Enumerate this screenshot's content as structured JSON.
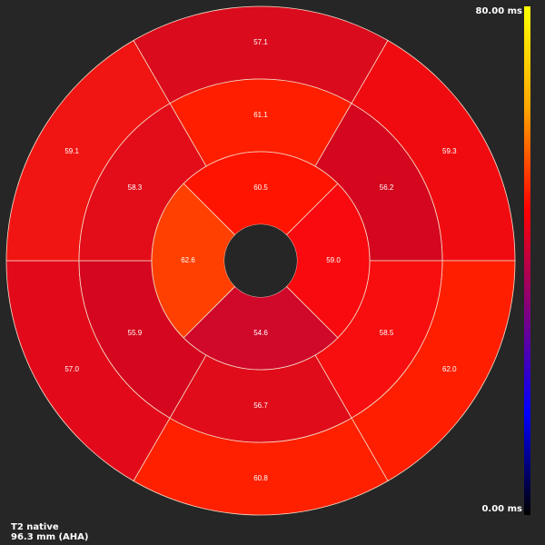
{
  "colorbar": {
    "max_label": "80.00 ms",
    "min_label": "0.00 ms",
    "min_value": 0,
    "max_value": 80,
    "gradient_colors": [
      "#000000",
      "#0000ff",
      "#800080",
      "#ff0000",
      "#ffa500",
      "#ffff00"
    ]
  },
  "footer": {
    "map_name": "T2 native",
    "slice_info": "96.3 mm (AHA)"
  },
  "chart_data": {
    "type": "bullseye",
    "unit": "ms",
    "outer_ring": {
      "labels": [
        "57.1",
        "59.3",
        "62.0",
        "60.8",
        "57.0",
        "59.1"
      ],
      "values": [
        57.1,
        59.3,
        62.0,
        60.8,
        57.0,
        59.1
      ],
      "colors": [
        "#da0b1c",
        "#f00b10",
        "#ff1e00",
        "#ff2000",
        "#e20a1a",
        "#f01512"
      ]
    },
    "mid_ring": {
      "labels": [
        "61.1",
        "56.2",
        "58.5",
        "56.7",
        "55.9",
        "58.3"
      ],
      "values": [
        61.1,
        56.2,
        58.5,
        56.7,
        55.9,
        58.3
      ],
      "colors": [
        "#ff1f00",
        "#d4071e",
        "#f80e0e",
        "#e00c1a",
        "#d4071e",
        "#e20d19"
      ]
    },
    "apical_ring": {
      "labels": [
        "60.5",
        "59.0",
        "54.6",
        "62.6"
      ],
      "values": [
        60.5,
        59.0,
        54.6,
        62.6
      ],
      "colors": [
        "#ff1400",
        "#f80a0e",
        "#d0082a",
        "#ff4000"
      ]
    }
  }
}
